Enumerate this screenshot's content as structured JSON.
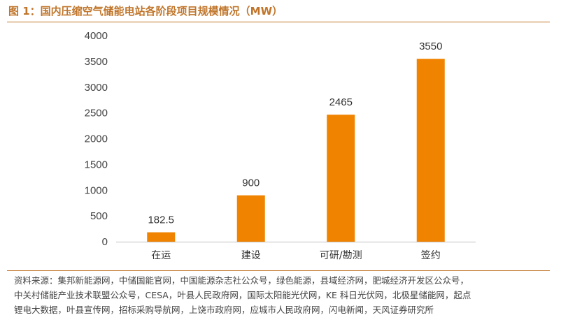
{
  "title": "图 1：国内压缩空气储能电站各阶段项目规模情况（MW）",
  "chart_data": {
    "type": "bar",
    "categories": [
      "在运",
      "建设",
      "可研/勘测",
      "签约"
    ],
    "values": [
      182.5,
      900,
      2465,
      3550
    ],
    "data_labels": [
      "182.5",
      "900",
      "2465",
      "3550"
    ],
    "yticks": [
      "0",
      "500",
      "1000",
      "1500",
      "2000",
      "2500",
      "3000",
      "3500",
      "4000"
    ],
    "ylim": [
      0,
      4000
    ],
    "grid": false,
    "bar_color": "#f08300"
  },
  "source": {
    "lines": [
      "资料来源：集邦新能源网，中储国能官网，中国能源杂志社公众号，绿色能源，县域经济网，肥城经济开发区公众号，",
      "中关村储能产业技术联盟公众号，CESA，叶县人民政府网，国际太阳能光伏网，KE 科日光伏网，北极星储能网，起点",
      "锂电大数据，叶县宣传网，招标采购导航网，上饶市政府网，应城市人民政府网，闪电新闻，天风证券研究所"
    ]
  }
}
